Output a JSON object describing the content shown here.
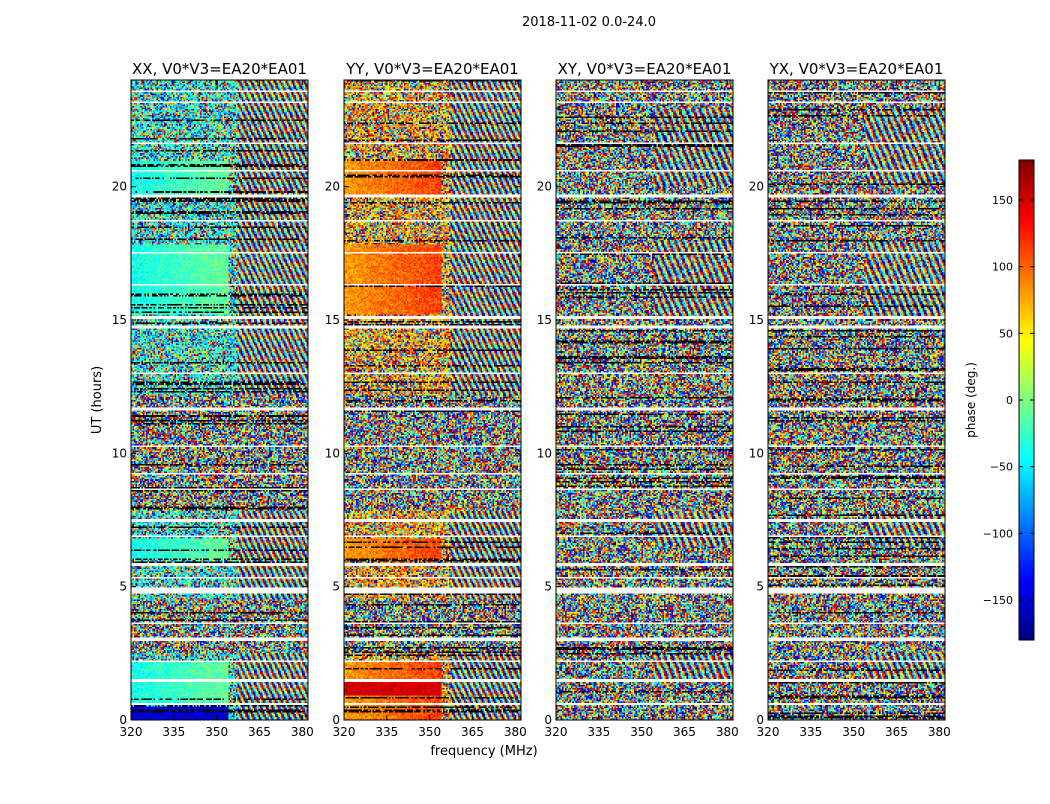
{
  "figure": {
    "suptitle": "2018-11-02 0.0-24.0"
  },
  "chart_data": {
    "type": "heatmap",
    "suptitle": "2018-11-02 0.0-24.0",
    "xlabel": "frequency (MHz)",
    "ylabel": "UT (hours)",
    "xlim": [
      320,
      382
    ],
    "ylim": [
      0,
      24
    ],
    "x_ticks": [
      320,
      335,
      350,
      365,
      380
    ],
    "y_ticks": [
      0,
      5,
      10,
      15,
      20
    ],
    "panels": [
      {
        "title": "XX, V0*V3=EA20*EA01",
        "style": "xx"
      },
      {
        "title": "YY, V0*V3=EA20*EA01",
        "style": "yy"
      },
      {
        "title": "XY, V0*V3=EA20*EA01",
        "style": "xy"
      },
      {
        "title": "YX, V0*V3=EA20*EA01",
        "style": "yx"
      }
    ],
    "colorbar": {
      "label": "phase (deg.)",
      "range": [
        -180,
        180
      ],
      "ticks": [
        -150,
        -100,
        -50,
        0,
        50,
        100,
        150
      ],
      "tick_labels": [
        "−150",
        "−100",
        "−50",
        "0",
        "50",
        "100",
        "150"
      ],
      "colormap": "jet",
      "colors": [
        "#00007f",
        "#0000ff",
        "#007fff",
        "#00ffff",
        "#7fff7f",
        "#ffff00",
        "#ff7f00",
        "#ff0000",
        "#7f0000"
      ]
    },
    "flagged_bands_ut": [
      [
        0.55,
        0.62
      ],
      [
        1.45,
        1.52
      ],
      [
        2.15,
        2.22
      ],
      [
        3.0,
        3.08
      ],
      [
        3.6,
        3.65
      ],
      [
        4.75,
        4.95
      ],
      [
        5.3,
        5.35
      ],
      [
        5.8,
        5.9
      ],
      [
        6.85,
        6.92
      ],
      [
        7.45,
        7.52
      ],
      [
        8.6,
        8.66
      ],
      [
        9.2,
        9.24
      ],
      [
        10.25,
        10.3
      ],
      [
        11.6,
        11.72
      ],
      [
        13.0,
        13.05
      ],
      [
        14.7,
        14.78
      ],
      [
        15.05,
        15.12
      ],
      [
        16.3,
        16.35
      ],
      [
        17.5,
        17.55
      ],
      [
        18.7,
        18.75
      ],
      [
        19.6,
        19.7
      ],
      [
        20.6,
        20.65
      ],
      [
        21.6,
        21.66
      ],
      [
        23.15,
        23.2
      ],
      [
        23.55,
        23.62
      ]
    ]
  }
}
